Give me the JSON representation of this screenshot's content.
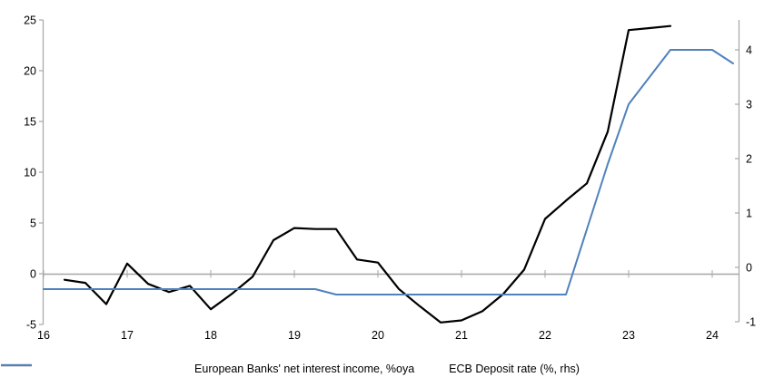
{
  "chart_data": {
    "type": "line",
    "title": "",
    "x_tick_values": [
      16,
      17,
      18,
      19,
      20,
      21,
      22,
      23,
      24
    ],
    "x_tick_labels": [
      "16",
      "17",
      "18",
      "19",
      "20",
      "21",
      "22",
      "23",
      "24"
    ],
    "left_axis": {
      "tick_values": [
        25,
        20,
        15,
        10,
        5,
        0,
        -5
      ],
      "tick_labels": [
        "25",
        "20",
        "15",
        "10",
        "5",
        "0",
        "-5"
      ],
      "range": [
        -5,
        25
      ]
    },
    "right_axis": {
      "tick_values": [
        4,
        3,
        2,
        1,
        0,
        -1
      ],
      "tick_labels": [
        "4",
        "3",
        "2",
        "1",
        "0",
        "-1"
      ],
      "range": [
        -1,
        4.5
      ]
    },
    "x_range": [
      16,
      24.33
    ],
    "grid": "zero-line-only",
    "legend_position": "bottom",
    "series": [
      {
        "name": "European Banks' net interest income, %oya",
        "axis": "left",
        "color": "#000000",
        "x": [
          16.25,
          16.5,
          16.75,
          17,
          17.25,
          17.5,
          17.75,
          18,
          18.25,
          18.5,
          18.75,
          19,
          19.25,
          19.5,
          19.75,
          20,
          20.25,
          20.5,
          20.75,
          21,
          21.25,
          21.5,
          21.75,
          22,
          22.25,
          22.5,
          22.75,
          23,
          23.25,
          23.5
        ],
        "values": [
          -0.6,
          -0.9,
          -3,
          1,
          -1,
          -1.8,
          -1.2,
          -3.5,
          -2,
          -0.3,
          3.3,
          4.5,
          4.4,
          4.4,
          1.4,
          1.1,
          -1.5,
          -3.2,
          -4.8,
          -4.6,
          -3.7,
          -2,
          0.4,
          5.4,
          7.2,
          8.9,
          14,
          24,
          24.2,
          24.4
        ]
      },
      {
        "name": "ECB Deposit rate (%, rhs)",
        "axis": "right",
        "color": "#4F81BD",
        "x": [
          16,
          16.25,
          16.5,
          16.75,
          17,
          17.25,
          17.5,
          17.75,
          18,
          18.25,
          18.5,
          18.75,
          19,
          19.25,
          19.5,
          19.75,
          20,
          20.25,
          20.5,
          20.75,
          21,
          21.25,
          21.5,
          21.75,
          22,
          22.25,
          22.5,
          22.75,
          23,
          23.25,
          23.5,
          23.75,
          24,
          24.25
        ],
        "values": [
          -0.4,
          -0.4,
          -0.4,
          -0.4,
          -0.4,
          -0.4,
          -0.4,
          -0.4,
          -0.4,
          -0.4,
          -0.4,
          -0.4,
          -0.4,
          -0.4,
          -0.5,
          -0.5,
          -0.5,
          -0.5,
          -0.5,
          -0.5,
          -0.5,
          -0.5,
          -0.5,
          -0.5,
          -0.5,
          -0.5,
          0.7,
          1.9,
          3,
          3.5,
          4,
          4,
          4,
          3.75
        ]
      }
    ]
  },
  "colors": {
    "background": "#ffffff",
    "axis": "#a6a6a6",
    "zero_line": "#a6a6a6",
    "tick_text": "#000000"
  }
}
